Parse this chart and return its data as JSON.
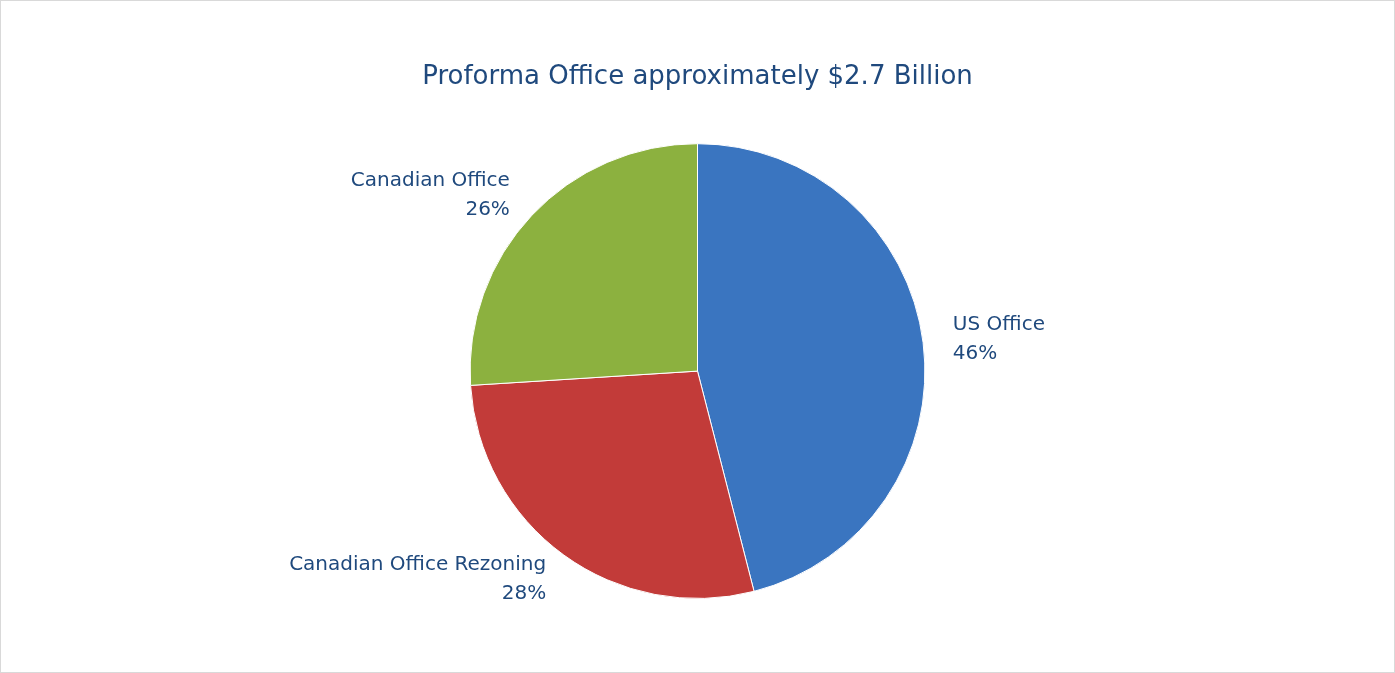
{
  "chart_data": {
    "type": "pie",
    "title": "Proforma Office approximately $2.7 Billion",
    "categories": [
      "US Office",
      "Canadian Office Rezoning",
      "Canadian Office"
    ],
    "values": [
      46,
      28,
      26
    ],
    "colors": [
      "#3a75c0",
      "#c23b39",
      "#8cb13f"
    ],
    "value_labels": [
      "46%",
      "28%",
      "26%"
    ],
    "legend": false
  }
}
